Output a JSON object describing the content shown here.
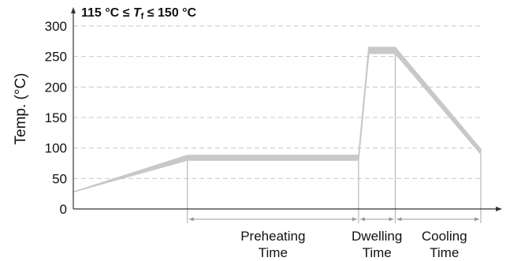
{
  "chart_data": {
    "type": "area",
    "title": {
      "prefix": "115 °C ≤ ",
      "var": "T",
      "sub": "f",
      "suffix": " ≤ 150 °C"
    },
    "ylabel": "Temp. (°C)",
    "ylim": [
      0,
      300
    ],
    "yticks": [
      0,
      50,
      100,
      150,
      200,
      250,
      300
    ],
    "grid": "horizontal dashed",
    "band_color": "#c8c8c8",
    "profile_upper": [
      {
        "x": 0,
        "y": 28
      },
      {
        "x": 0.28,
        "y": 88
      },
      {
        "x": 0.7,
        "y": 88
      },
      {
        "x": 0.725,
        "y": 265
      },
      {
        "x": 0.79,
        "y": 265
      },
      {
        "x": 1.0,
        "y": 98
      }
    ],
    "profile_lower": [
      {
        "x": 0,
        "y": 28
      },
      {
        "x": 0.28,
        "y": 80
      },
      {
        "x": 0.7,
        "y": 80
      },
      {
        "x": 0.725,
        "y": 255
      },
      {
        "x": 0.79,
        "y": 255
      },
      {
        "x": 1.0,
        "y": 90
      }
    ],
    "phases": [
      {
        "label_line1": "Preheating",
        "label_line2": "Time",
        "x_start": 0.28,
        "x_end": 0.7
      },
      {
        "label_line1": "Dwelling",
        "label_line2": "Time",
        "x_start": 0.7,
        "x_end": 0.79
      },
      {
        "label_line1": "Cooling",
        "label_line2": "Time",
        "x_start": 0.79,
        "x_end": 1.0
      }
    ]
  }
}
